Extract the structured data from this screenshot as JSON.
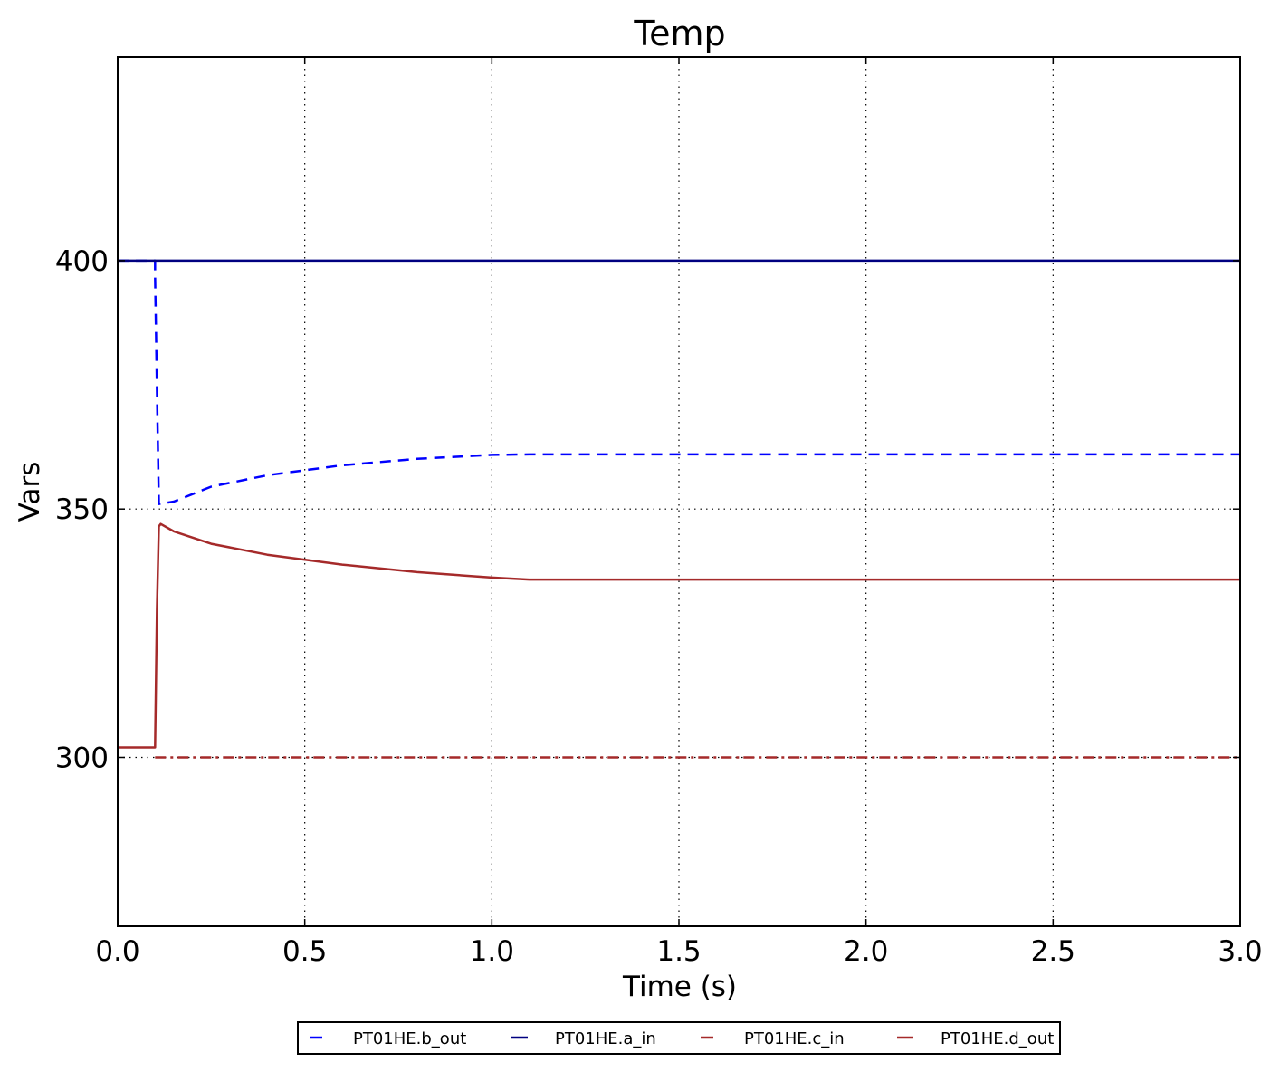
{
  "chart_data": {
    "type": "line",
    "title": "Temp",
    "xlabel": "Time (s)",
    "ylabel": "Vars",
    "xlim": [
      0.0,
      3.0
    ],
    "ylim": [
      266,
      441
    ],
    "x_ticks": [
      0.0,
      0.5,
      1.0,
      1.5,
      2.0,
      2.5,
      3.0
    ],
    "x_tick_labels": [
      "0.0",
      "0.5",
      "1.0",
      "1.5",
      "2.0",
      "2.5",
      "3.0"
    ],
    "y_ticks": [
      300,
      350,
      400
    ],
    "y_tick_labels": [
      "300",
      "350",
      "400"
    ],
    "grid": true,
    "legend_position": "bottom-center-below",
    "series": [
      {
        "name": "PT01HE.b_out",
        "color": "#0000ff",
        "style": "dashed",
        "x": [
          0.0,
          0.1,
          0.1,
          0.11,
          0.15,
          0.25,
          0.4,
          0.6,
          0.8,
          1.0,
          1.1,
          3.0
        ],
        "y": [
          400,
          400,
          397,
          351,
          351.5,
          354.5,
          356.8,
          358.8,
          360.1,
          360.9,
          361,
          361
        ]
      },
      {
        "name": "PT01HE.a_in",
        "color": "#000080",
        "style": "solid",
        "x": [
          0.0,
          3.0
        ],
        "y": [
          400,
          400
        ]
      },
      {
        "name": "PT01HE.c_in",
        "color": "#a52a2a",
        "style": "dashdot",
        "x": [
          0.1,
          3.0
        ],
        "y": [
          300,
          300
        ]
      },
      {
        "name": "PT01HE.d_out",
        "color": "#a52a2a",
        "style": "solid",
        "x": [
          0.0,
          0.1,
          0.105,
          0.11,
          0.115,
          0.15,
          0.25,
          0.4,
          0.6,
          0.8,
          1.0,
          1.1,
          3.0
        ],
        "y": [
          302,
          302,
          330,
          346.5,
          347,
          345.5,
          343,
          340.8,
          338.8,
          337.3,
          336.2,
          335.8,
          335.8
        ]
      }
    ]
  }
}
